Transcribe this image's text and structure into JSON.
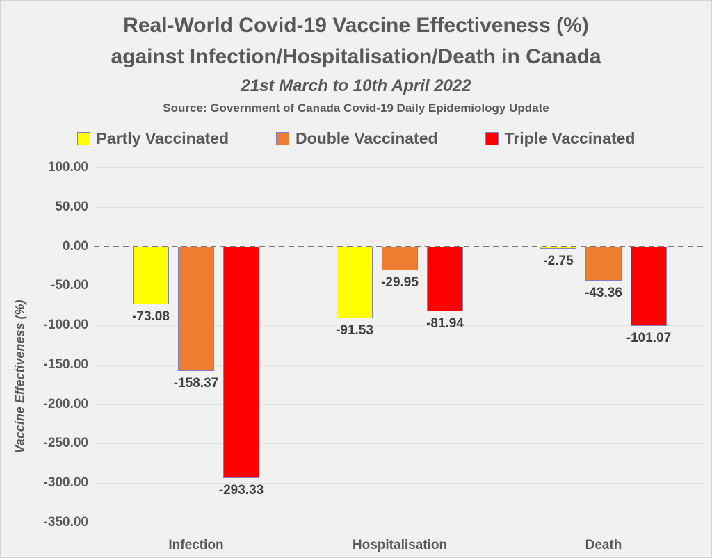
{
  "title": {
    "line1": "Real-World Covid-19 Vaccine Effectiveness (%)",
    "line2": "against Infection/Hospitalisation/Death in Canada"
  },
  "subtitle": "21st March to 10th April 2022",
  "source": "Source: Government of Canada Covid-19 Daily Epidemiology Update",
  "chart_data": {
    "type": "bar",
    "categories": [
      "Infection",
      "Hospitalisation",
      "Death"
    ],
    "series": [
      {
        "name": "Partly Vaccinated",
        "color": "#FFFF00",
        "values": [
          -73.08,
          -91.53,
          -2.75
        ]
      },
      {
        "name": "Double Vaccinated",
        "color": "#ED7D31",
        "values": [
          -158.37,
          -29.95,
          -43.36
        ]
      },
      {
        "name": "Triple Vaccinated",
        "color": "#FF0000",
        "values": [
          -293.33,
          -81.94,
          -101.07
        ]
      }
    ],
    "ylabel": "Vaccine Effectiveness (%)",
    "ylim": [
      -350,
      100
    ],
    "ytick_step": 50,
    "ytick_labels": [
      "100.00",
      "50.00",
      "0.00",
      "-50.00",
      "-100.00",
      "-150.00",
      "-200.00",
      "-250.00",
      "-300.00",
      "-350.00"
    ],
    "value_label_decimals": 2,
    "grid": true,
    "legend_position": "top",
    "zero_line": "dashed",
    "colors": {
      "background": "#F1F1F1",
      "title_text": "#595959",
      "axis_text": "#595959",
      "value_label_text": "#404040",
      "gridline": "#E2E2E2",
      "zero_line": "#7A7A7A",
      "bar_border": "#8080C0"
    }
  }
}
